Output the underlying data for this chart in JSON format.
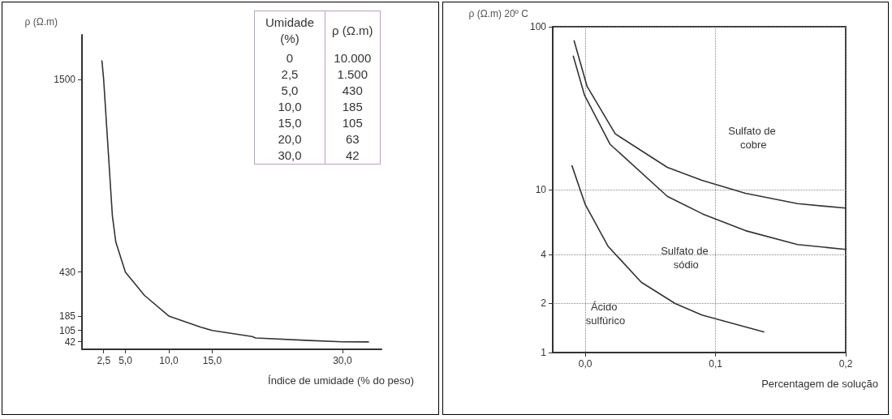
{
  "chart_data": [
    {
      "type": "line",
      "xlabel": "Índice de umidade (% do peso)",
      "ylabel": "ρ (Ω.m)",
      "xlim": [
        0,
        34.5
      ],
      "xticks": [
        {
          "value": 2.5,
          "label": "2,5"
        },
        {
          "value": 5,
          "label": "5,0"
        },
        {
          "value": 10,
          "label": "10,0"
        },
        {
          "value": 15,
          "label": "15,0"
        },
        {
          "value": 30,
          "label": "30,0"
        }
      ],
      "ylim": [
        0,
        1750
      ],
      "yticks": [
        42,
        105,
        185,
        430,
        1500
      ],
      "grid": false,
      "marker": "none",
      "line_style": "solid",
      "series": [
        {
          "color": "#333333",
          "x": [
            2.3,
            2.5,
            3.5,
            3.9,
            5,
            7.2,
            10,
            13.7,
            15,
            19.6,
            20,
            26.2,
            30,
            33
          ],
          "values": [
            1605,
            1500,
            744,
            596,
            430,
            300,
            185,
            123,
            105,
            71,
            63,
            49,
            42,
            41
          ]
        }
      ],
      "annotations": [
        "Umidade (%)",
        "ρ (Ω.m)",
        "0",
        "10.000",
        "2,5",
        "1.500",
        "5,0",
        "430",
        "10,0",
        "185",
        "15,0",
        "105",
        "20,0",
        "63",
        "30,0",
        "42"
      ]
    },
    {
      "type": "line",
      "xlabel": "Percentagem de solução",
      "ylabel": "ρ (Ω.m) 20º C",
      "xlim": [
        -0.025,
        0.2
      ],
      "xticks": [
        {
          "value": 0,
          "label": "0,0"
        },
        {
          "value": 0.1,
          "label": "0,1"
        },
        {
          "value": 0.2,
          "label": "0,2"
        }
      ],
      "ylim": [
        1,
        100
      ],
      "yticks": [
        1,
        2,
        4,
        10,
        100
      ],
      "log": "y",
      "grid": true,
      "marker": "none",
      "line_style": "solid",
      "series": [
        {
          "color": "#333333",
          "x": [
            -0.0086,
            0.0014,
            0.023,
            0.063,
            0.0896,
            0.123,
            0.163,
            0.2
          ],
          "values": [
            82,
            43,
            22,
            13.7,
            11.4,
            9.5,
            8.2,
            7.7
          ]
        },
        {
          "color": "#333333",
          "x": [
            -0.0092,
            -0.0006,
            0.019,
            0.063,
            0.09,
            0.123,
            0.163,
            0.2
          ],
          "values": [
            66,
            38,
            19,
            9.1,
            7.1,
            5.6,
            4.6,
            4.3
          ]
        },
        {
          "color": "#333333",
          "x": [
            -0.0102,
            0,
            0.0174,
            0.043,
            0.069,
            0.0896,
            0.137
          ],
          "values": [
            14,
            8.1,
            4.5,
            2.7,
            2.0,
            1.7,
            1.34
          ]
        }
      ],
      "annotations": [
        "Sulfato de cobre",
        "Sulfato de sódio",
        "Ácido sulfúrico"
      ]
    }
  ]
}
